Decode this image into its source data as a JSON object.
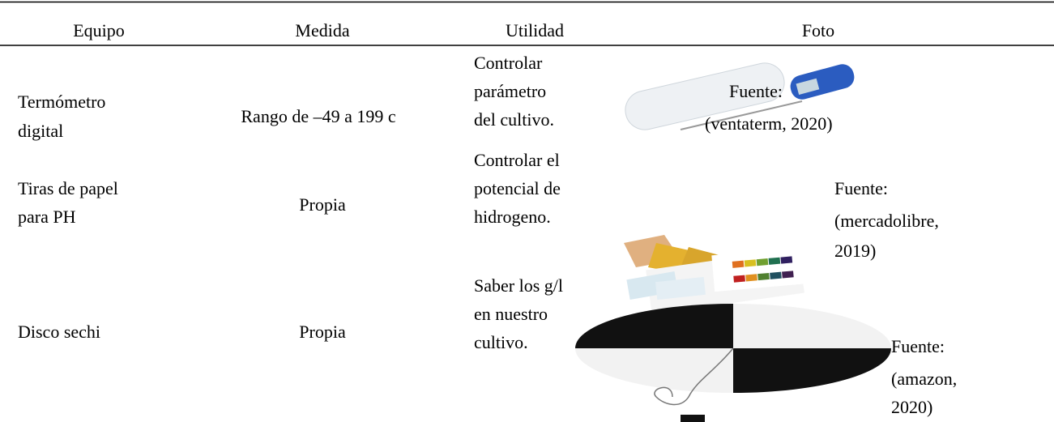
{
  "table": {
    "header": [
      "Equipo",
      "Medida",
      "Utilidad",
      "Foto"
    ],
    "rows": [
      {
        "equipo": [
          "Termómetro",
          "digital"
        ],
        "medida": "Rango de –49 a 199 c",
        "utilidad": [
          "Controlar",
          "parámetro",
          "del cultivo."
        ],
        "fuente": [
          "Fuente:",
          "(ventaterm, 2020)"
        ]
      },
      {
        "equipo": [
          "Tiras de papel",
          "para PH"
        ],
        "medida": "Propia",
        "utilidad": [
          "Controlar el",
          "potencial de",
          "hidrogeno."
        ],
        "fuente": [
          "Fuente:",
          "(mercadolibre,",
          "2019)"
        ]
      },
      {
        "equipo": [
          "Disco sechi"
        ],
        "medida": "Propia",
        "utilidad": [
          "Saber los g/l",
          "en nuestro",
          "cultivo."
        ],
        "fuente": [
          "Fuente:",
          "(amazon,",
          "2020)"
        ]
      }
    ]
  }
}
